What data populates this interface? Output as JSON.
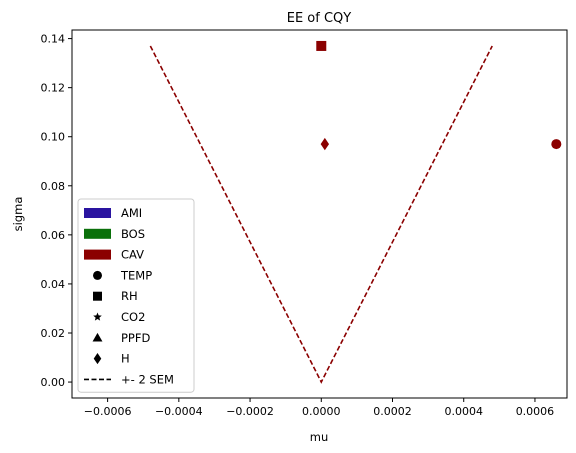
{
  "chart_data": {
    "type": "scatter",
    "title": "EE of CQY",
    "xlabel": "mu",
    "ylabel": "sigma",
    "xlim": [
      -0.0007,
      0.00069
    ],
    "ylim": [
      -0.0065,
      0.1435
    ],
    "xticks": [
      -0.0006,
      -0.0004,
      -0.0002,
      0.0,
      0.0002,
      0.0004,
      0.0006
    ],
    "xtick_labels": [
      "−0.0006",
      "−0.0004",
      "−0.0002",
      "0.0000",
      "0.0002",
      "0.0004",
      "0.0006"
    ],
    "yticks": [
      0.0,
      0.02,
      0.04,
      0.06,
      0.08,
      0.1,
      0.12,
      0.14
    ],
    "ytick_labels": [
      "0.00",
      "0.02",
      "0.04",
      "0.06",
      "0.08",
      "0.10",
      "0.12",
      "0.14"
    ],
    "points": [
      {
        "group": "CAV",
        "variable": "TEMP",
        "marker": "circle",
        "x": 0.00066,
        "y": 0.097
      },
      {
        "group": "CAV",
        "variable": "RH",
        "marker": "square",
        "x": 0.0,
        "y": 0.137
      },
      {
        "group": "CAV",
        "variable": "H",
        "marker": "diamond",
        "x": 1e-05,
        "y": 0.097
      }
    ],
    "sem_lines": [
      {
        "group": "CAV",
        "label": "+- 2 SEM",
        "x": [
          -0.00048,
          0.0,
          0.00048
        ],
        "y": [
          0.137,
          0.0,
          0.137
        ]
      }
    ],
    "legend": {
      "placement": "lower-left",
      "groups": [
        {
          "label": "AMI",
          "color": "#2a14a0"
        },
        {
          "label": "BOS",
          "color": "#0a700a"
        },
        {
          "label": "CAV",
          "color": "#8b0000"
        }
      ],
      "markers": [
        {
          "label": "TEMP",
          "marker": "circle"
        },
        {
          "label": "RH",
          "marker": "square"
        },
        {
          "label": "CO2",
          "marker": "star"
        },
        {
          "label": "PPFD",
          "marker": "triangle"
        },
        {
          "label": "H",
          "marker": "diamond"
        }
      ],
      "line": {
        "label": "+- 2 SEM",
        "style": "dashed"
      }
    },
    "grid": false
  }
}
